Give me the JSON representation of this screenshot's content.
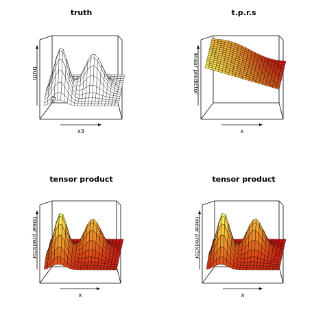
{
  "chart_data": [
    {
      "type": "surface",
      "title": "truth",
      "xlabel": "x3",
      "zlabel": "truth",
      "ylabel": "z3",
      "shading": "white"
    },
    {
      "type": "surface",
      "title": "t.p.r.s",
      "xlabel": "x",
      "zlabel": "linear predictor",
      "ylabel": "",
      "shading": "heat"
    },
    {
      "type": "surface",
      "title": "tensor product",
      "xlabel": "x",
      "zlabel": "linear predictor",
      "ylabel": "",
      "shading": "heat"
    },
    {
      "type": "surface",
      "title": "tensor product",
      "xlabel": "x",
      "zlabel": "linear predictor",
      "ylabel": "",
      "shading": "heat"
    }
  ]
}
